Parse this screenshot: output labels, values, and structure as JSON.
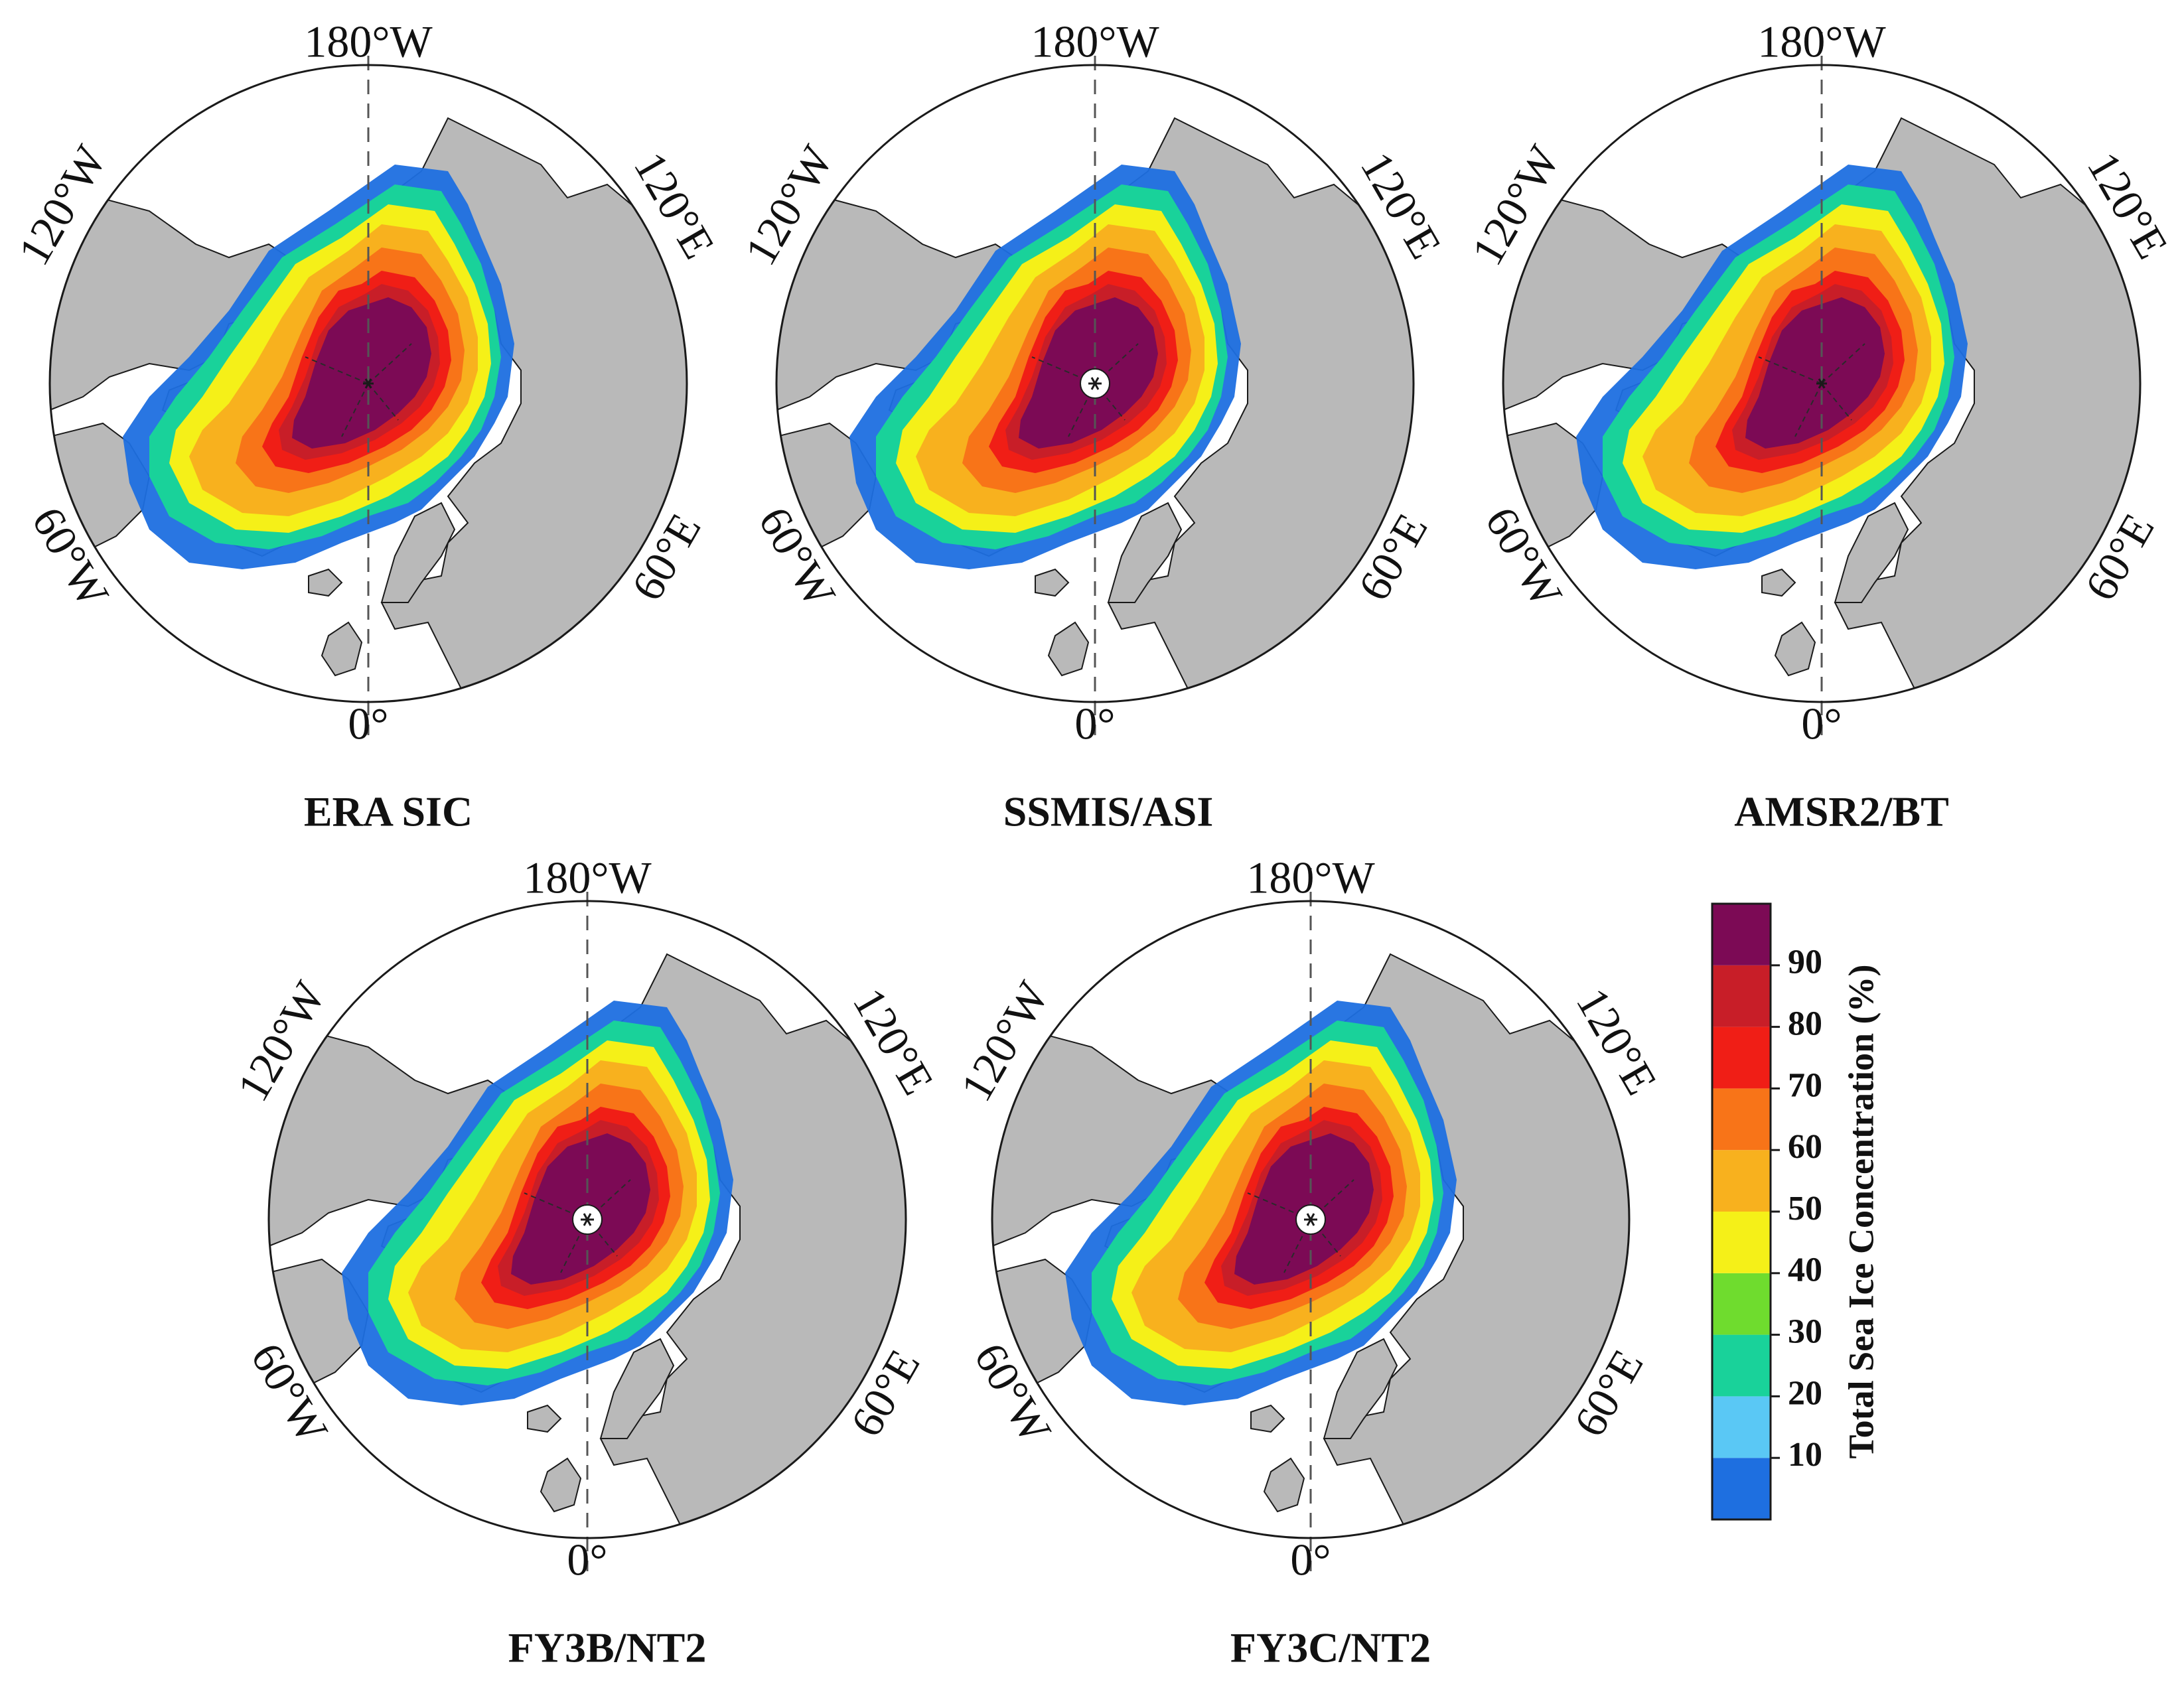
{
  "figure": {
    "panels": [
      {
        "title": "ERA SIC",
        "pole": "star"
      },
      {
        "title": "SSMIS/ASI",
        "pole": "hole"
      },
      {
        "title": "AMSR2/BT",
        "pole": "star"
      },
      {
        "title": "FY3B/NT2",
        "pole": "hole"
      },
      {
        "title": "FY3C/NT2",
        "pole": "hole"
      }
    ],
    "coords": {
      "top": "180°W",
      "bottom": "0°",
      "upper_left": "120°W",
      "upper_right": "120°E",
      "lower_left": "60°W",
      "lower_right": "60°E"
    },
    "colorbar": {
      "title": "Total Sea Ice Concentration (%)",
      "ticks": [
        "10",
        "20",
        "30",
        "40",
        "50",
        "60",
        "70",
        "80",
        "90"
      ],
      "colors": [
        "#1e6fe0",
        "#5ac8f5",
        "#19d29a",
        "#6fdc2e",
        "#f5f018",
        "#f8b11e",
        "#f87418",
        "#f01e16",
        "#c81e28",
        "#7c0a55"
      ]
    },
    "colors": {
      "land": "#b9b9b9",
      "ocean": "#ffffff",
      "outline": "#1a1a1a"
    }
  }
}
